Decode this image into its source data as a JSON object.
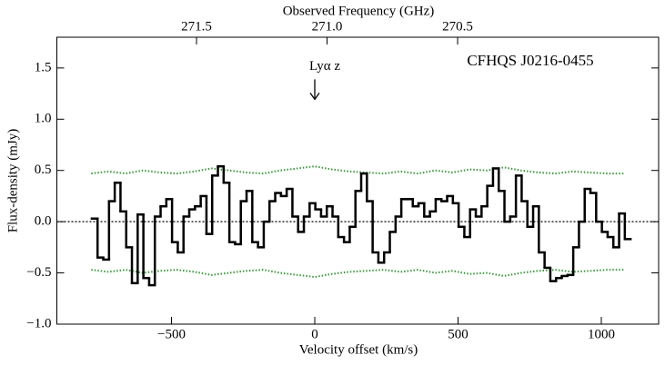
{
  "chart_data": {
    "type": "step",
    "annotations": {
      "source": "CFHQS J0216-0455",
      "line_marker": {
        "text": "Lyα z",
        "x": 0,
        "y": 1.3
      }
    },
    "xlabel": "Velocity offset (km/s)",
    "ylabel": "Flux-density (mJy)",
    "x2label": "Observed Frequency (GHz)",
    "xlim": [
      -900,
      1200
    ],
    "ylim": [
      -1.0,
      1.8
    ],
    "x2lim": [
      272.035,
      269.73
    ],
    "xticks": [
      {
        "value": -500,
        "label": "−500"
      },
      0,
      500,
      1000
    ],
    "yticks": [
      {
        "value": -1,
        "label": "−1.0"
      },
      {
        "value": -0.5,
        "label": "−0.5"
      },
      {
        "value": 0,
        "label": "0.0"
      },
      {
        "value": 0.5,
        "label": "0.5"
      },
      {
        "value": 1,
        "label": "1.0"
      },
      {
        "value": 1.5,
        "label": "1.5"
      }
    ],
    "x2ticks": [
      271.5,
      {
        "value": 271,
        "label": "271.0"
      },
      270.5
    ],
    "zero_line": true,
    "x": [
      -768,
      -748,
      -728,
      -708,
      -688,
      -668,
      -648,
      -628,
      -608,
      -588,
      -568,
      -548,
      -528,
      -508,
      -488,
      -468,
      -448,
      -428,
      -408,
      -388,
      -368,
      -348,
      -328,
      -308,
      -288,
      -268,
      -248,
      -228,
      -208,
      -188,
      -168,
      -148,
      -128,
      -108,
      -88,
      -68,
      -48,
      -28,
      -8,
      12,
      32,
      52,
      72,
      92,
      112,
      132,
      152,
      172,
      192,
      212,
      232,
      252,
      272,
      292,
      312,
      332,
      352,
      372,
      392,
      412,
      432,
      452,
      472,
      492,
      512,
      532,
      552,
      572,
      592,
      612,
      632,
      652,
      672,
      692,
      712,
      732,
      752,
      772,
      792,
      812,
      832,
      852,
      872,
      892,
      912,
      932,
      952,
      972,
      992,
      1012,
      1032,
      1052,
      1072,
      1092
    ],
    "series": [
      {
        "color": "#000000",
        "values": [
          0.03,
          -0.35,
          -0.37,
          0.2,
          0.38,
          0.1,
          -0.25,
          -0.6,
          0.07,
          -0.55,
          -0.62,
          0.05,
          0.15,
          0.22,
          -0.2,
          -0.3,
          0.05,
          0.12,
          0.15,
          0.25,
          -0.12,
          0.45,
          0.54,
          0.38,
          -0.2,
          -0.22,
          0.2,
          0.3,
          -0.2,
          -0.25,
          0.0,
          0.2,
          0.28,
          0.25,
          0.32,
          0.05,
          -0.1,
          0.05,
          0.18,
          0.12,
          0.05,
          0.15,
          0.05,
          -0.15,
          -0.2,
          -0.05,
          0.3,
          0.47,
          0.2,
          -0.3,
          -0.4,
          -0.3,
          -0.1,
          0.05,
          0.22,
          0.22,
          0.15,
          0.18,
          0.05,
          0.1,
          0.22,
          0.2,
          0.25,
          0.18,
          -0.05,
          -0.15,
          0.12,
          0.05,
          0.15,
          0.35,
          0.52,
          0.3,
          0.0,
          0.05,
          0.45,
          0.2,
          -0.05,
          0.15,
          -0.3,
          -0.45,
          -0.58,
          -0.55,
          -0.53,
          -0.52,
          -0.25,
          0.0,
          0.32,
          0.28,
          0.0,
          -0.1,
          -0.15,
          -0.25,
          0.08,
          -0.17
        ]
      }
    ],
    "noise_x": [
      -780,
      -720,
      -660,
      -600,
      -540,
      -480,
      -420,
      -360,
      -300,
      -240,
      -180,
      -120,
      -60,
      0,
      60,
      120,
      180,
      240,
      300,
      360,
      420,
      480,
      540,
      600,
      660,
      720,
      780,
      840,
      900,
      960,
      1020,
      1080
    ],
    "noise": [
      {
        "color": "#2ca02c",
        "values": [
          0.47,
          0.49,
          0.47,
          0.5,
          0.48,
          0.47,
          0.49,
          0.52,
          0.5,
          0.48,
          0.47,
          0.5,
          0.52,
          0.54,
          0.51,
          0.49,
          0.48,
          0.47,
          0.49,
          0.47,
          0.5,
          0.48,
          0.51,
          0.5,
          0.53,
          0.5,
          0.48,
          0.47,
          0.49,
          0.48,
          0.47,
          0.47
        ]
      },
      {
        "color": "#2ca02c",
        "values": [
          -0.47,
          -0.49,
          -0.47,
          -0.5,
          -0.48,
          -0.47,
          -0.49,
          -0.52,
          -0.5,
          -0.48,
          -0.47,
          -0.5,
          -0.52,
          -0.54,
          -0.51,
          -0.49,
          -0.48,
          -0.47,
          -0.49,
          -0.47,
          -0.5,
          -0.48,
          -0.51,
          -0.5,
          -0.53,
          -0.5,
          -0.48,
          -0.47,
          -0.49,
          -0.48,
          -0.47,
          -0.47
        ]
      }
    ]
  }
}
